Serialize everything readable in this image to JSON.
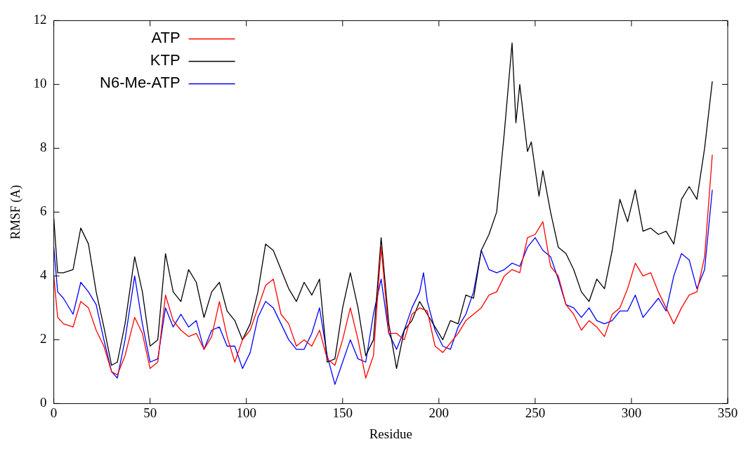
{
  "chart_data": {
    "type": "line",
    "xlabel": "Residue",
    "ylabel": "RMSF (A)",
    "xlim": [
      0,
      350
    ],
    "xticks": [
      0,
      50,
      100,
      150,
      200,
      250,
      300,
      350
    ],
    "ylim": [
      0,
      12
    ],
    "yticks": [
      0,
      2,
      4,
      6,
      8,
      10,
      12
    ],
    "grid": false,
    "legend": "top left",
    "marker": "none",
    "line_style": "solid",
    "series": [
      {
        "name": "ATP",
        "color": "#ff0000",
        "x": [
          0,
          2,
          5,
          10,
          14,
          18,
          22,
          26,
          30,
          33,
          37,
          42,
          46,
          50,
          54,
          58,
          62,
          66,
          70,
          74,
          78,
          82,
          86,
          90,
          94,
          98,
          102,
          106,
          110,
          114,
          118,
          122,
          126,
          130,
          134,
          138,
          142,
          146,
          150,
          154,
          158,
          162,
          166,
          170,
          174,
          178,
          182,
          186,
          190,
          194,
          198,
          202,
          206,
          210,
          214,
          218,
          222,
          226,
          230,
          234,
          238,
          242,
          246,
          250,
          254,
          258,
          262,
          266,
          270,
          274,
          278,
          282,
          286,
          290,
          294,
          298,
          302,
          306,
          310,
          314,
          318,
          322,
          326,
          330,
          334,
          338,
          342
        ],
        "values": [
          4.0,
          2.7,
          2.5,
          2.4,
          3.2,
          3.0,
          2.3,
          1.8,
          1.0,
          0.9,
          1.5,
          2.7,
          2.2,
          1.1,
          1.3,
          3.4,
          2.6,
          2.3,
          2.1,
          2.2,
          1.7,
          2.1,
          3.2,
          2.1,
          1.3,
          2.0,
          2.3,
          3.0,
          3.7,
          3.9,
          2.8,
          2.5,
          1.8,
          2.0,
          1.8,
          2.3,
          1.4,
          1.2,
          2.0,
          3.0,
          2.0,
          0.8,
          1.5,
          4.9,
          2.2,
          2.2,
          2.0,
          2.8,
          3.0,
          2.9,
          1.8,
          1.6,
          1.9,
          2.2,
          2.6,
          2.8,
          3.0,
          3.4,
          3.5,
          4.0,
          4.2,
          4.1,
          5.2,
          5.3,
          5.7,
          4.3,
          4.0,
          3.1,
          2.8,
          2.3,
          2.6,
          2.4,
          2.1,
          2.8,
          3.0,
          3.6,
          4.4,
          4.0,
          4.1,
          3.5,
          3.0,
          2.5,
          3.0,
          3.4,
          3.5,
          4.6,
          7.8
        ]
      },
      {
        "name": "KTP",
        "color": "#000000",
        "x": [
          0,
          2,
          5,
          10,
          14,
          18,
          22,
          26,
          30,
          33,
          37,
          42,
          46,
          50,
          54,
          58,
          62,
          66,
          70,
          74,
          78,
          82,
          86,
          90,
          94,
          98,
          102,
          106,
          110,
          114,
          118,
          122,
          126,
          130,
          134,
          138,
          142,
          146,
          150,
          154,
          158,
          162,
          166,
          170,
          174,
          178,
          182,
          186,
          190,
          194,
          198,
          202,
          206,
          210,
          214,
          218,
          222,
          226,
          230,
          234,
          238,
          240,
          242,
          246,
          248,
          252,
          254,
          258,
          262,
          266,
          270,
          274,
          278,
          282,
          286,
          290,
          294,
          298,
          302,
          306,
          310,
          314,
          318,
          322,
          326,
          330,
          334,
          338,
          342
        ],
        "values": [
          5.8,
          4.1,
          4.1,
          4.2,
          5.5,
          5.0,
          3.5,
          2.4,
          1.2,
          1.3,
          2.5,
          4.6,
          3.5,
          1.8,
          2.0,
          4.7,
          3.5,
          3.2,
          4.2,
          3.8,
          2.7,
          3.5,
          3.8,
          2.9,
          2.6,
          2.0,
          2.5,
          3.5,
          5.0,
          4.8,
          4.2,
          3.6,
          3.2,
          3.8,
          3.4,
          3.9,
          1.3,
          1.4,
          3.0,
          4.1,
          3.0,
          1.5,
          2.0,
          5.2,
          2.5,
          1.1,
          2.3,
          2.6,
          3.2,
          2.8,
          2.4,
          2.0,
          2.6,
          2.5,
          3.4,
          3.3,
          4.8,
          5.3,
          6.0,
          8.5,
          11.3,
          8.8,
          10.0,
          7.9,
          8.2,
          6.5,
          7.3,
          6.0,
          4.9,
          4.7,
          4.2,
          3.5,
          3.2,
          3.9,
          3.6,
          4.8,
          6.4,
          5.7,
          6.7,
          5.4,
          5.5,
          5.3,
          5.4,
          5.0,
          6.4,
          6.8,
          6.4,
          8.0,
          10.1
        ]
      },
      {
        "name": "N6-Me-ATP",
        "color": "#0000ff",
        "x": [
          0,
          2,
          5,
          10,
          14,
          18,
          22,
          26,
          30,
          33,
          37,
          42,
          46,
          50,
          54,
          58,
          62,
          66,
          70,
          74,
          78,
          82,
          86,
          90,
          94,
          98,
          102,
          106,
          110,
          114,
          118,
          122,
          126,
          130,
          134,
          138,
          142,
          146,
          150,
          154,
          158,
          162,
          166,
          170,
          174,
          178,
          182,
          186,
          190,
          192,
          194,
          198,
          202,
          206,
          210,
          214,
          218,
          222,
          226,
          230,
          234,
          238,
          242,
          246,
          250,
          254,
          258,
          262,
          266,
          270,
          274,
          278,
          282,
          286,
          290,
          294,
          298,
          302,
          306,
          310,
          314,
          318,
          322,
          326,
          330,
          334,
          338,
          342
        ],
        "values": [
          4.9,
          3.5,
          3.3,
          2.8,
          3.8,
          3.5,
          3.1,
          2.0,
          1.0,
          0.8,
          2.0,
          4.0,
          2.5,
          1.3,
          1.4,
          3.0,
          2.4,
          2.8,
          2.4,
          2.6,
          1.7,
          2.3,
          2.4,
          1.8,
          1.8,
          1.1,
          1.6,
          2.7,
          3.2,
          3.0,
          2.5,
          2.0,
          1.7,
          1.7,
          2.2,
          3.0,
          1.5,
          0.6,
          1.3,
          2.0,
          1.4,
          1.3,
          2.8,
          3.9,
          2.2,
          1.7,
          2.3,
          3.0,
          3.5,
          4.1,
          3.2,
          2.3,
          1.8,
          1.7,
          2.4,
          2.8,
          3.5,
          4.8,
          4.2,
          4.1,
          4.2,
          4.4,
          4.3,
          4.9,
          5.2,
          4.8,
          4.6,
          3.9,
          3.1,
          3.0,
          2.7,
          3.0,
          2.6,
          2.5,
          2.6,
          2.9,
          2.9,
          3.4,
          2.7,
          3.0,
          3.3,
          2.9,
          4.0,
          4.7,
          4.5,
          3.6,
          4.2,
          6.7
        ]
      }
    ]
  }
}
